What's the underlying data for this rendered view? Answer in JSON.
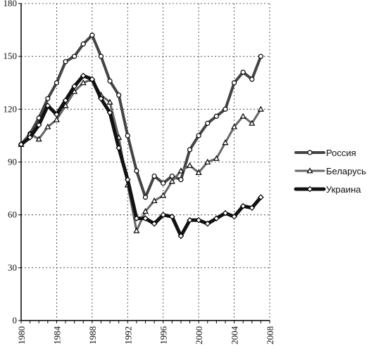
{
  "chart_data": {
    "type": "line",
    "title": "",
    "xlabel": "",
    "ylabel": "",
    "xlim": [
      1980,
      2008
    ],
    "ylim": [
      0,
      180
    ],
    "x_ticks": [
      1980,
      1984,
      1988,
      1992,
      1996,
      2000,
      2004,
      2008
    ],
    "y_ticks": [
      0,
      30,
      60,
      90,
      120,
      150,
      180
    ],
    "grid": "dashed horizontal and vertical",
    "legend_position": "right",
    "x": [
      1980,
      1981,
      1982,
      1983,
      1984,
      1985,
      1986,
      1987,
      1988,
      1989,
      1990,
      1991,
      1992,
      1993,
      1994,
      1995,
      1996,
      1997,
      1998,
      1999,
      2000,
      2001,
      2002,
      2003,
      2004,
      2005,
      2006,
      2007
    ],
    "series": [
      {
        "name": "Россия",
        "marker": "circle",
        "color": "#444444",
        "width": 4,
        "values": [
          100,
          106,
          115,
          126,
          135,
          147,
          150,
          157,
          162,
          150,
          136,
          128,
          105,
          85,
          70,
          82,
          78,
          82,
          80,
          97,
          105,
          112,
          116,
          120,
          135,
          141,
          137,
          150
        ]
      },
      {
        "name": "Беларусь",
        "marker": "triangle",
        "color": "#666666",
        "width": 3,
        "values": [
          100,
          106,
          103,
          110,
          114,
          122,
          130,
          135,
          137,
          128,
          124,
          104,
          77,
          51,
          62,
          68,
          71,
          79,
          85,
          88,
          84,
          90,
          92,
          101,
          110,
          116,
          112,
          120
        ]
      },
      {
        "name": "Украина",
        "marker": "diamond",
        "color": "#111111",
        "width": 5,
        "values": [
          100,
          104,
          111,
          122,
          117,
          125,
          133,
          139,
          137,
          126,
          118,
          98,
          80,
          58,
          58,
          55,
          60,
          59,
          48,
          57,
          57,
          55,
          58,
          61,
          59,
          65,
          64,
          70
        ]
      }
    ]
  }
}
